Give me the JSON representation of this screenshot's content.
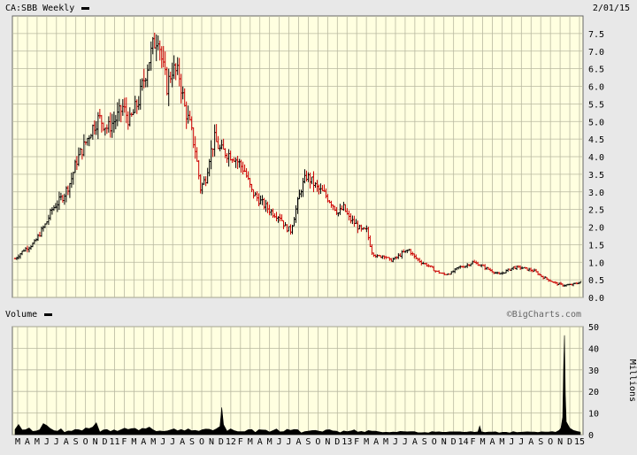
{
  "header": {
    "symbol_label": "CA:SBB Weekly",
    "date": "2/01/15"
  },
  "volume_header": {
    "label": "Volume",
    "brand": "©BigCharts.com"
  },
  "colors": {
    "plot_bg": "#ffffe0",
    "grid": "#b8b8a0",
    "up": "#000000",
    "down": "#cc0000",
    "volume": "#000000",
    "frame_bg": "#e8e8e8"
  },
  "chart_data": [
    {
      "type": "line",
      "name": "price",
      "ylim": [
        0,
        8
      ],
      "y_ticks": [
        "0.0",
        "0.5",
        "1.0",
        "1.5",
        "2.0",
        "2.5",
        "3.0",
        "3.5",
        "4.0",
        "4.5",
        "5.0",
        "5.5",
        "6.0",
        "6.5",
        "7.0",
        "7.5"
      ],
      "grid": true,
      "series": [
        {
          "values": [
            [
              0,
              1.1
            ],
            [
              10,
              1.35
            ],
            [
              22,
              1.55
            ],
            [
              30,
              1.9
            ],
            [
              35,
              2.1
            ],
            [
              42,
              2.5
            ],
            [
              55,
              2.9
            ],
            [
              63,
              3.3
            ],
            [
              70,
              3.9
            ],
            [
              78,
              4.3
            ],
            [
              87,
              4.8
            ],
            [
              95,
              5.1
            ],
            [
              105,
              4.8
            ],
            [
              115,
              5.1
            ],
            [
              122,
              5.4
            ],
            [
              130,
              5.0
            ],
            [
              140,
              5.6
            ],
            [
              145,
              6.1
            ],
            [
              150,
              6.6
            ],
            [
              157,
              7.2
            ],
            [
              162,
              7.5
            ],
            [
              167,
              6.6
            ],
            [
              172,
              6.0
            ],
            [
              178,
              6.5
            ],
            [
              186,
              6.3
            ],
            [
              192,
              5.4
            ],
            [
              198,
              4.9
            ],
            [
              204,
              4.2
            ],
            [
              210,
              3.1
            ],
            [
              216,
              3.4
            ],
            [
              220,
              4.0
            ],
            [
              226,
              4.5
            ],
            [
              232,
              4.2
            ],
            [
              240,
              4.1
            ],
            [
              248,
              4.0
            ],
            [
              254,
              3.8
            ],
            [
              260,
              3.6
            ],
            [
              268,
              3.0
            ],
            [
              275,
              2.8
            ],
            [
              283,
              2.6
            ],
            [
              292,
              2.4
            ],
            [
              300,
              2.3
            ],
            [
              306,
              2.0
            ],
            [
              312,
              1.9
            ],
            [
              318,
              2.5
            ],
            [
              324,
              3.1
            ],
            [
              330,
              3.45
            ],
            [
              336,
              3.3
            ],
            [
              342,
              3.1
            ],
            [
              350,
              2.95
            ],
            [
              358,
              2.7
            ],
            [
              366,
              2.4
            ],
            [
              372,
              2.55
            ],
            [
              378,
              2.25
            ],
            [
              385,
              2.1
            ],
            [
              392,
              1.9
            ],
            [
              398,
              1.9
            ],
            [
              404,
              1.3
            ],
            [
              410,
              1.15
            ],
            [
              418,
              1.2
            ],
            [
              424,
              1.05
            ],
            [
              430,
              1.1
            ],
            [
              438,
              1.25
            ],
            [
              446,
              1.35
            ],
            [
              452,
              1.15
            ],
            [
              460,
              1.0
            ],
            [
              468,
              0.9
            ],
            [
              476,
              0.75
            ],
            [
              486,
              0.65
            ],
            [
              494,
              0.7
            ],
            [
              502,
              0.85
            ],
            [
              510,
              0.9
            ],
            [
              518,
              1.0
            ],
            [
              524,
              0.95
            ],
            [
              532,
              0.85
            ],
            [
              540,
              0.75
            ],
            [
              548,
              0.65
            ],
            [
              556,
              0.75
            ],
            [
              564,
              0.85
            ],
            [
              572,
              0.85
            ],
            [
              580,
              0.8
            ],
            [
              588,
              0.75
            ],
            [
              596,
              0.6
            ],
            [
              604,
              0.5
            ],
            [
              612,
              0.4
            ],
            [
              620,
              0.35
            ],
            [
              628,
              0.35
            ],
            [
              636,
              0.4
            ],
            [
              640,
              0.45
            ]
          ]
        }
      ]
    },
    {
      "type": "area",
      "name": "volume",
      "ylim": [
        0,
        50
      ],
      "y_ticks": [
        "0",
        "10",
        "20",
        "30",
        "40",
        "50"
      ],
      "ylabel": "Millions",
      "x_ticks": [
        "M",
        "A",
        "M",
        "J",
        "J",
        "A",
        "S",
        "O",
        "N",
        "D",
        "11",
        "F",
        "M",
        "A",
        "M",
        "J",
        "J",
        "A",
        "S",
        "O",
        "N",
        "D",
        "12",
        "F",
        "M",
        "A",
        "M",
        "J",
        "J",
        "A",
        "S",
        "O",
        "N",
        "D",
        "13",
        "F",
        "M",
        "A",
        "M",
        "J",
        "J",
        "A",
        "S",
        "O",
        "N",
        "D",
        "14",
        "F",
        "M",
        "A",
        "M",
        "J",
        "J",
        "A",
        "S",
        "O",
        "N",
        "D",
        "15"
      ],
      "series": [
        {
          "values": [
            [
              0,
              2.4
            ],
            [
              4,
              4.7
            ],
            [
              8,
              2.2
            ],
            [
              12,
              2.3
            ],
            [
              16,
              3.1
            ],
            [
              20,
              1.5
            ],
            [
              24,
              1.7
            ],
            [
              28,
              2.3
            ],
            [
              32,
              5.1
            ],
            [
              36,
              4.2
            ],
            [
              40,
              2.8
            ],
            [
              44,
              1.9
            ],
            [
              48,
              1.6
            ],
            [
              52,
              2.7
            ],
            [
              56,
              1.0
            ],
            [
              60,
              1.7
            ],
            [
              64,
              1.6
            ],
            [
              68,
              2.4
            ],
            [
              72,
              2.3
            ],
            [
              76,
              1.8
            ],
            [
              80,
              3.1
            ],
            [
              84,
              2.8
            ],
            [
              88,
              3.5
            ],
            [
              92,
              5.5
            ],
            [
              96,
              1.2
            ],
            [
              100,
              2.2
            ],
            [
              104,
              2.4
            ],
            [
              108,
              1.5
            ],
            [
              112,
              2.2
            ],
            [
              116,
              1.6
            ],
            [
              120,
              2.3
            ],
            [
              124,
              3.0
            ],
            [
              128,
              2.4
            ],
            [
              132,
              2.8
            ],
            [
              136,
              2.9
            ],
            [
              140,
              1.9
            ],
            [
              144,
              2.9
            ],
            [
              148,
              2.7
            ],
            [
              152,
              3.5
            ],
            [
              156,
              2.3
            ],
            [
              160,
              1.5
            ],
            [
              164,
              1.7
            ],
            [
              168,
              1.5
            ],
            [
              172,
              1.7
            ],
            [
              176,
              2.2
            ],
            [
              180,
              2.7
            ],
            [
              184,
              1.8
            ],
            [
              188,
              2.4
            ],
            [
              192,
              1.8
            ],
            [
              196,
              2.7
            ],
            [
              200,
              1.8
            ],
            [
              204,
              2.0
            ],
            [
              208,
              1.6
            ],
            [
              212,
              2.3
            ],
            [
              216,
              2.6
            ],
            [
              220,
              2.5
            ],
            [
              224,
              1.9
            ],
            [
              228,
              2.7
            ],
            [
              232,
              3.8
            ],
            [
              234,
              12.6
            ],
            [
              236,
              4.6
            ],
            [
              240,
              1.6
            ],
            [
              244,
              2.7
            ],
            [
              248,
              1.9
            ],
            [
              252,
              1.4
            ],
            [
              256,
              1.4
            ],
            [
              260,
              1.4
            ],
            [
              264,
              2.3
            ],
            [
              268,
              2.4
            ],
            [
              272,
              1.0
            ],
            [
              276,
              2.3
            ],
            [
              280,
              2.2
            ],
            [
              284,
              2.1
            ],
            [
              288,
              1.2
            ],
            [
              292,
              1.9
            ],
            [
              296,
              2.6
            ],
            [
              300,
              1.3
            ],
            [
              304,
              1.4
            ],
            [
              308,
              2.5
            ],
            [
              312,
              2.0
            ],
            [
              316,
              2.4
            ],
            [
              320,
              2.3
            ],
            [
              324,
              0.8
            ],
            [
              328,
              1.4
            ],
            [
              332,
              1.6
            ],
            [
              336,
              1.9
            ],
            [
              340,
              2.0
            ],
            [
              344,
              1.6
            ],
            [
              348,
              1.3
            ],
            [
              352,
              2.2
            ],
            [
              356,
              2.3
            ],
            [
              360,
              1.7
            ],
            [
              364,
              1.6
            ],
            [
              368,
              0.9
            ],
            [
              372,
              1.7
            ],
            [
              376,
              1.4
            ],
            [
              380,
              1.7
            ],
            [
              384,
              2.2
            ],
            [
              388,
              1.2
            ],
            [
              392,
              1.5
            ],
            [
              396,
              1.1
            ],
            [
              400,
              1.9
            ],
            [
              404,
              1.6
            ],
            [
              408,
              1.6
            ],
            [
              412,
              1.3
            ],
            [
              416,
              1.0
            ],
            [
              420,
              1.1
            ],
            [
              424,
              1.0
            ],
            [
              428,
              1.2
            ],
            [
              432,
              1.1
            ],
            [
              436,
              1.5
            ],
            [
              440,
              1.4
            ],
            [
              444,
              1.3
            ],
            [
              448,
              1.4
            ],
            [
              452,
              1.4
            ],
            [
              456,
              0.9
            ],
            [
              460,
              0.9
            ],
            [
              464,
              1.0
            ],
            [
              468,
              0.8
            ],
            [
              472,
              1.4
            ],
            [
              476,
              1.2
            ],
            [
              480,
              1.3
            ],
            [
              484,
              1.1
            ],
            [
              488,
              1.1
            ],
            [
              492,
              1.3
            ],
            [
              496,
              1.3
            ],
            [
              500,
              1.3
            ],
            [
              504,
              1.3
            ],
            [
              508,
              1.1
            ],
            [
              512,
              1.2
            ],
            [
              516,
              1.4
            ],
            [
              520,
              1.1
            ],
            [
              524,
              1.3
            ],
            [
              526,
              4.0
            ],
            [
              528,
              1.3
            ],
            [
              532,
              1.0
            ],
            [
              536,
              1.2
            ],
            [
              540,
              1.2
            ],
            [
              544,
              1.3
            ],
            [
              548,
              0.8
            ],
            [
              552,
              1.1
            ],
            [
              556,
              1.1
            ],
            [
              560,
              0.8
            ],
            [
              564,
              1.4
            ],
            [
              568,
              1.0
            ],
            [
              572,
              1.1
            ],
            [
              576,
              1.2
            ],
            [
              580,
              1.3
            ],
            [
              584,
              1.2
            ],
            [
              588,
              1.2
            ],
            [
              592,
              1.0
            ],
            [
              596,
              1.3
            ],
            [
              600,
              1.2
            ],
            [
              604,
              1.2
            ],
            [
              608,
              1.4
            ],
            [
              612,
              1.1
            ],
            [
              616,
              2.0
            ],
            [
              618,
              3.0
            ],
            [
              620,
              8.0
            ],
            [
              621,
              31.0
            ],
            [
              622,
              46.0
            ],
            [
              623,
              18.0
            ],
            [
              624,
              6.0
            ],
            [
              628,
              3.0
            ],
            [
              632,
              2.0
            ],
            [
              636,
              1.5
            ],
            [
              640,
              1.2
            ]
          ]
        }
      ]
    }
  ]
}
